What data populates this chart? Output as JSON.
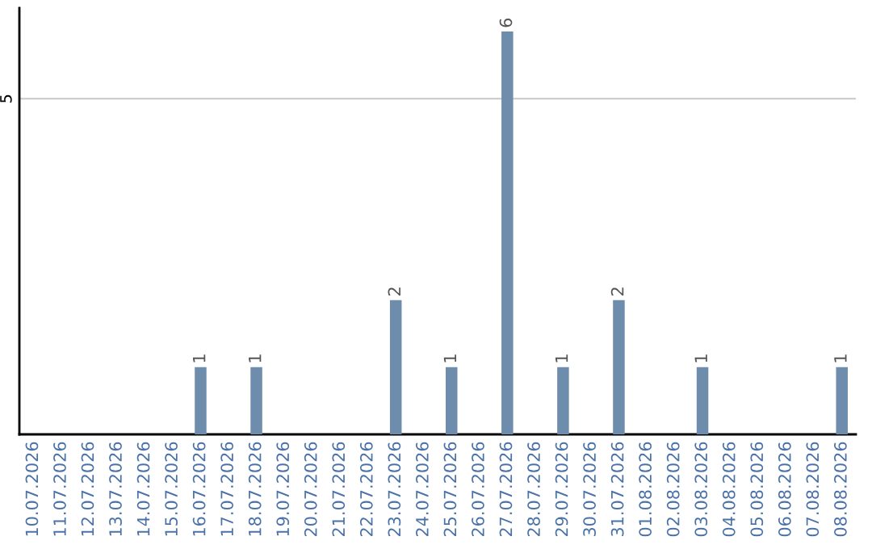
{
  "chart_data": {
    "type": "bar",
    "categories": [
      "10.07.2026",
      "11.07.2026",
      "12.07.2026",
      "13.07.2026",
      "14.07.2026",
      "15.07.2026",
      "16.07.2026",
      "17.07.2026",
      "18.07.2026",
      "19.07.2026",
      "20.07.2026",
      "21.07.2026",
      "22.07.2026",
      "23.07.2026",
      "24.07.2026",
      "25.07.2026",
      "26.07.2026",
      "27.07.2026",
      "28.07.2026",
      "29.07.2026",
      "30.07.2026",
      "31.07.2026",
      "01.08.2026",
      "02.08.2026",
      "03.08.2026",
      "04.08.2026",
      "05.08.2026",
      "06.08.2026",
      "07.08.2026",
      "08.08.2026"
    ],
    "values": [
      0,
      0,
      0,
      0,
      0,
      0,
      1,
      0,
      1,
      0,
      0,
      0,
      0,
      2,
      0,
      1,
      0,
      6,
      0,
      1,
      0,
      2,
      0,
      0,
      1,
      0,
      0,
      0,
      0,
      1
    ],
    "color": "#6e8cab",
    "ylim": [
      0,
      6.35
    ],
    "yticks": [
      5
    ],
    "grid": "y",
    "value_labels": [
      null,
      null,
      null,
      null,
      null,
      null,
      "1",
      null,
      "1",
      null,
      null,
      null,
      null,
      "2",
      null,
      "1",
      null,
      "6",
      null,
      "1",
      null,
      "2",
      null,
      null,
      "1",
      null,
      null,
      null,
      null,
      "1"
    ]
  }
}
